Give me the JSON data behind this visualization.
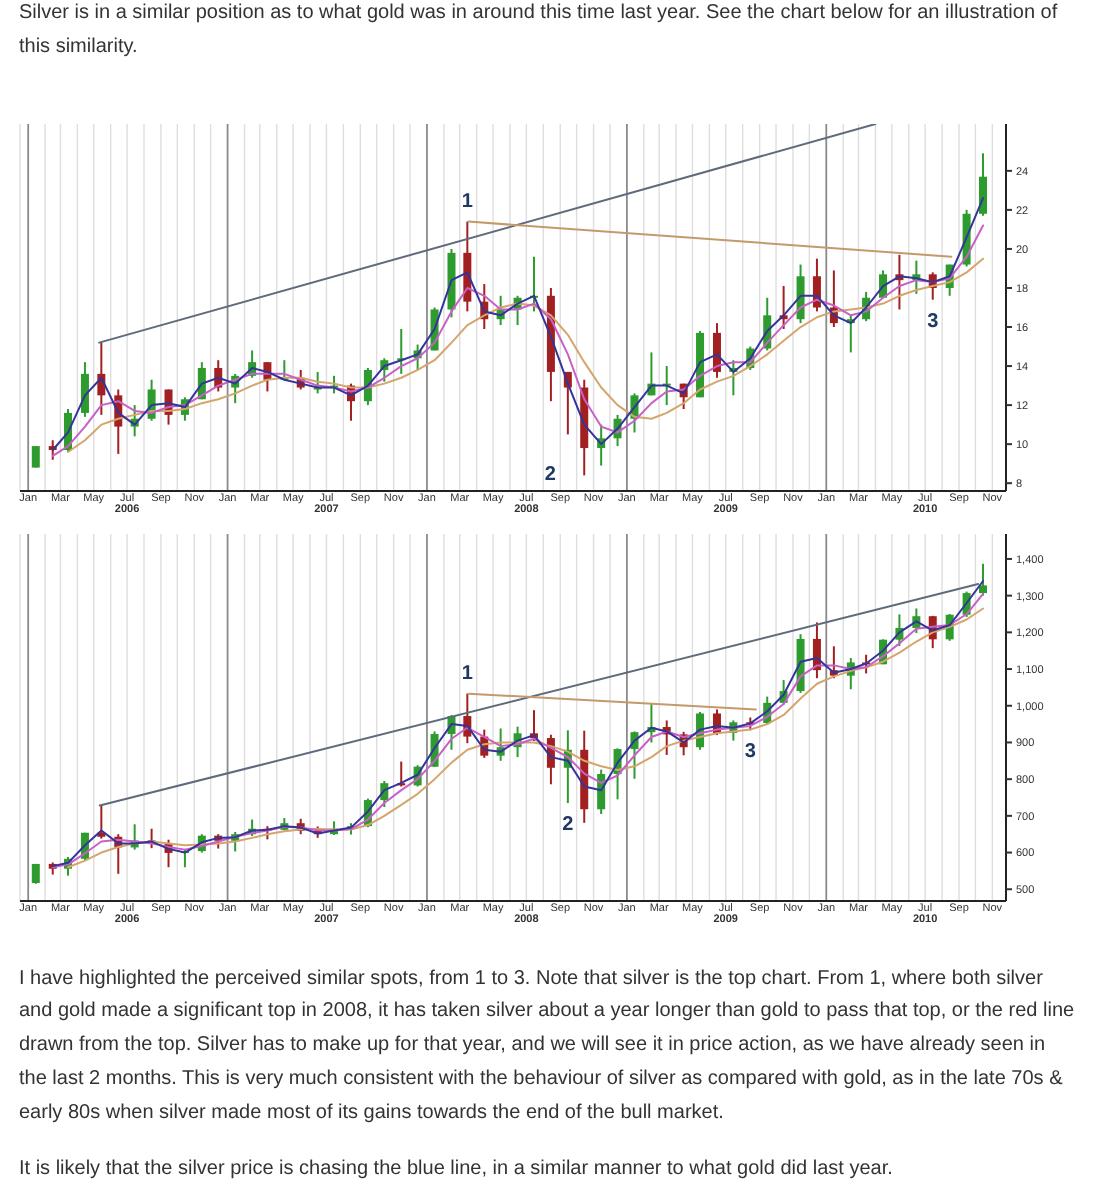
{
  "chart_data": [
    {
      "type": "candlestick",
      "title": "Silver is in a similar position as to what gold was in around this time last year. See the chart below for an illustration of this similarity.",
      "x": [
        "2006-01-15",
        "2006-02-15",
        "2006-03-15",
        "2006-04-15",
        "2006-05-15",
        "2006-06-15",
        "2006-07-15",
        "2006-08-15",
        "2006-09-15",
        "2006-10-15",
        "2006-11-15",
        "2006-12-15",
        "2007-01-15",
        "2007-02-15",
        "2007-03-15",
        "2007-04-15",
        "2007-05-15",
        "2007-06-15",
        "2007-07-15",
        "2007-08-15",
        "2007-09-15",
        "2007-10-15",
        "2007-11-15",
        "2007-12-15",
        "2008-01-15",
        "2008-02-15",
        "2008-03-15",
        "2008-04-15",
        "2008-05-15",
        "2008-06-15",
        "2008-07-15",
        "2008-08-15",
        "2008-09-15",
        "2008-10-15",
        "2008-11-15",
        "2008-12-15",
        "2009-01-15",
        "2009-02-15",
        "2009-03-15",
        "2009-04-15",
        "2009-05-15",
        "2009-06-15",
        "2009-07-15",
        "2009-08-15",
        "2009-09-15",
        "2009-10-15",
        "2009-11-15",
        "2009-12-15",
        "2010-01-15",
        "2010-02-15",
        "2010-03-15",
        "2010-04-15",
        "2010-05-15",
        "2010-06-15",
        "2010-07-15",
        "2010-08-15",
        "2010-09-15",
        "2010-10-15"
      ],
      "ohlc": [
        [
          8.8,
          9.9,
          8.8,
          9.9
        ],
        [
          9.9,
          10.2,
          9.2,
          9.7
        ],
        [
          9.7,
          11.8,
          9.6,
          11.6
        ],
        [
          11.6,
          14.2,
          11.4,
          13.6
        ],
        [
          13.6,
          15.2,
          11.5,
          12.5
        ],
        [
          12.5,
          12.8,
          9.5,
          10.9
        ],
        [
          10.9,
          12.0,
          10.4,
          11.3
        ],
        [
          11.3,
          13.3,
          11.2,
          12.8
        ],
        [
          12.8,
          12.8,
          11.0,
          11.5
        ],
        [
          11.5,
          12.4,
          11.2,
          12.3
        ],
        [
          12.3,
          14.2,
          12.3,
          13.9
        ],
        [
          13.9,
          14.3,
          12.7,
          12.9
        ],
        [
          12.9,
          13.6,
          12.1,
          13.5
        ],
        [
          13.5,
          14.8,
          13.4,
          14.2
        ],
        [
          14.2,
          14.2,
          12.7,
          13.3
        ],
        [
          13.3,
          14.3,
          13.3,
          13.4
        ],
        [
          13.4,
          13.8,
          12.8,
          12.9
        ],
        [
          12.9,
          13.7,
          12.6,
          12.9
        ],
        [
          12.9,
          13.5,
          12.6,
          13.0
        ],
        [
          13.0,
          13.1,
          11.2,
          12.2
        ],
        [
          12.2,
          13.9,
          12.0,
          13.8
        ],
        [
          13.8,
          14.4,
          13.2,
          14.3
        ],
        [
          14.3,
          15.9,
          13.6,
          14.4
        ],
        [
          14.4,
          15.1,
          13.8,
          14.8
        ],
        [
          14.8,
          17.0,
          14.8,
          16.9
        ],
        [
          16.9,
          20.0,
          16.5,
          19.8
        ],
        [
          19.8,
          21.4,
          16.8,
          17.3
        ],
        [
          17.3,
          18.2,
          15.9,
          16.4
        ],
        [
          16.4,
          17.6,
          16.1,
          16.9
        ],
        [
          16.9,
          17.6,
          16.1,
          17.5
        ],
        [
          17.5,
          19.6,
          16.8,
          17.6
        ],
        [
          17.6,
          18.0,
          12.2,
          13.7
        ],
        [
          13.7,
          13.7,
          10.5,
          12.9
        ],
        [
          12.9,
          13.3,
          8.4,
          9.8
        ],
        [
          9.8,
          11.0,
          8.9,
          10.3
        ],
        [
          10.3,
          11.5,
          9.9,
          11.3
        ],
        [
          11.3,
          12.6,
          10.6,
          12.5
        ],
        [
          12.5,
          14.7,
          12.5,
          13.1
        ],
        [
          13.1,
          14.0,
          12.0,
          13.1
        ],
        [
          13.1,
          13.1,
          11.8,
          12.4
        ],
        [
          12.4,
          15.8,
          12.4,
          15.7
        ],
        [
          15.7,
          16.2,
          13.4,
          13.7
        ],
        [
          13.7,
          14.3,
          12.5,
          13.9
        ],
        [
          13.9,
          15.0,
          13.8,
          14.9
        ],
        [
          14.9,
          17.5,
          14.8,
          16.6
        ],
        [
          16.6,
          18.1,
          15.9,
          16.4
        ],
        [
          16.4,
          19.2,
          16.2,
          18.6
        ],
        [
          18.6,
          19.5,
          16.8,
          17.0
        ],
        [
          17.0,
          18.9,
          16.0,
          16.2
        ],
        [
          16.2,
          16.6,
          14.7,
          16.4
        ],
        [
          16.4,
          17.8,
          16.3,
          17.5
        ],
        [
          17.5,
          18.9,
          17.5,
          18.7
        ],
        [
          18.7,
          19.7,
          16.9,
          18.4
        ],
        [
          18.4,
          19.4,
          17.7,
          18.7
        ],
        [
          18.7,
          18.8,
          17.4,
          18.0
        ],
        [
          18.0,
          19.2,
          17.6,
          19.2
        ],
        [
          19.2,
          22.0,
          19.1,
          21.8
        ],
        [
          21.8,
          24.9,
          21.7,
          23.7
        ]
      ],
      "colors": [
        "#2e9b2e",
        "#a32020",
        "#2e9b2e",
        "#2e9b2e",
        "#a32020",
        "#a32020",
        "#2e9b2e",
        "#2e9b2e",
        "#a32020",
        "#2e9b2e",
        "#2e9b2e",
        "#a32020",
        "#2e9b2e",
        "#2e9b2e",
        "#a32020",
        "#2e9b2e",
        "#a32020",
        "#2e9b2e",
        "#2e9b2e",
        "#a32020",
        "#2e9b2e",
        "#2e9b2e",
        "#2e9b2e",
        "#2e9b2e",
        "#2e9b2e",
        "#2e9b2e",
        "#a32020",
        "#a32020",
        "#2e9b2e",
        "#2e9b2e",
        "#2e9b2e",
        "#a32020",
        "#a32020",
        "#a32020",
        "#2e9b2e",
        "#2e9b2e",
        "#2e9b2e",
        "#2e9b2e",
        "#2e9b2e",
        "#a32020",
        "#2e9b2e",
        "#a32020",
        "#2e9b2e",
        "#2e9b2e",
        "#2e9b2e",
        "#a32020",
        "#2e9b2e",
        "#a32020",
        "#a32020",
        "#2e9b2e",
        "#2e9b2e",
        "#2e9b2e",
        "#a32020",
        "#2e9b2e",
        "#a32020",
        "#2e9b2e",
        "#2e9b2e",
        "#2e9b2e"
      ],
      "series": [
        {
          "type": "line",
          "color": "#d4a56c",
          "values": [
            null,
            null,
            9.6,
            10.2,
            11.0,
            11.3,
            11.5,
            11.7,
            11.7,
            11.8,
            12.1,
            12.3,
            12.6,
            13.0,
            13.3,
            13.4,
            13.4,
            13.2,
            13.1,
            12.9,
            12.9,
            13.1,
            13.4,
            13.8,
            14.3,
            15.2,
            16.1,
            16.6,
            17.0,
            17.2,
            17.1,
            16.6,
            15.6,
            14.2,
            12.9,
            12.0,
            11.4,
            11.3,
            11.6,
            12.1,
            12.8,
            13.2,
            13.5,
            14.0,
            14.6,
            15.3,
            16.0,
            16.5,
            16.8,
            16.9,
            17.0,
            17.2,
            17.6,
            17.9,
            18.1,
            18.3,
            18.8,
            19.5
          ]
        },
        {
          "type": "line",
          "color": "#c860c8",
          "values": [
            null,
            9.4,
            9.9,
            10.9,
            12.0,
            12.2,
            11.7,
            11.6,
            11.9,
            12.0,
            12.5,
            13.0,
            13.3,
            13.6,
            13.6,
            13.6,
            13.3,
            13.0,
            12.9,
            12.7,
            12.9,
            13.4,
            14.0,
            14.4,
            15.2,
            16.8,
            18.0,
            17.6,
            16.9,
            16.9,
            17.2,
            16.4,
            14.6,
            12.3,
            10.9,
            10.6,
            11.2,
            12.1,
            12.7,
            12.8,
            13.5,
            14.0,
            14.2,
            14.2,
            15.2,
            16.1,
            17.0,
            17.4,
            17.1,
            16.6,
            16.8,
            17.5,
            18.1,
            18.4,
            18.3,
            18.5,
            19.6,
            21.2
          ]
        },
        {
          "type": "line",
          "color": "#34349a",
          "values": [
            null,
            9.7,
            10.6,
            12.5,
            13.4,
            11.6,
            11.0,
            12.0,
            12.1,
            11.9,
            13.1,
            13.4,
            13.1,
            13.9,
            13.7,
            13.3,
            13.1,
            12.9,
            12.9,
            12.5,
            13.0,
            14.0,
            14.3,
            14.6,
            15.9,
            18.4,
            18.8,
            16.8,
            16.6,
            17.2,
            17.6,
            15.5,
            13.1,
            11.0,
            10.0,
            10.8,
            11.9,
            13.0,
            13.0,
            12.6,
            14.2,
            14.6,
            13.7,
            14.4,
            15.8,
            16.6,
            17.6,
            17.6,
            16.6,
            16.2,
            17.0,
            18.1,
            18.6,
            18.5,
            18.3,
            18.6,
            20.6,
            22.6
          ]
        },
        {
          "type": "line",
          "color": "#5f6b7c",
          "x": [
            "2006-05-11",
            "2010-04-01"
          ],
          "values": [
            15.2,
            26.4
          ]
        },
        {
          "type": "line",
          "color": "#c39a6a",
          "x": [
            "2008-03-17",
            "2010-08-18"
          ],
          "values": [
            21.4,
            19.6
          ]
        }
      ],
      "xlim": [
        "2005-12-17",
        "2010-11-26"
      ],
      "xticks": [
        {
          "value": "2006-01",
          "label": "Jan"
        },
        {
          "value": "2006-02",
          "label": null
        },
        {
          "value": "2006-03",
          "label": "Mar"
        },
        {
          "value": "2006-04",
          "label": null
        },
        {
          "value": "2006-05",
          "label": "May"
        },
        {
          "value": "2006-06",
          "label": null
        },
        {
          "value": "2006-07",
          "label": "Jul"
        },
        {
          "value": "2006-08",
          "label": null
        },
        {
          "value": "2006-09",
          "label": "Sep"
        },
        {
          "value": "2006-10",
          "label": null
        },
        {
          "value": "2006-11",
          "label": "Nov"
        },
        {
          "value": "2006-12",
          "label": null
        },
        {
          "value": "2007-01",
          "label": "Jan"
        },
        {
          "value": "2007-02",
          "label": null
        },
        {
          "value": "2007-03",
          "label": "Mar"
        },
        {
          "value": "2007-04",
          "label": null
        },
        {
          "value": "2007-05",
          "label": "May"
        },
        {
          "value": "2007-06",
          "label": null
        },
        {
          "value": "2007-07",
          "label": "Jul"
        },
        {
          "value": "2007-08",
          "label": null
        },
        {
          "value": "2007-09",
          "label": "Sep"
        },
        {
          "value": "2007-10",
          "label": null
        },
        {
          "value": "2007-11",
          "label": "Nov"
        },
        {
          "value": "2007-12",
          "label": null
        },
        {
          "value": "2008-01",
          "label": "Jan"
        },
        {
          "value": "2008-02",
          "label": null
        },
        {
          "value": "2008-03",
          "label": "Mar"
        },
        {
          "value": "2008-04",
          "label": null
        },
        {
          "value": "2008-05",
          "label": "May"
        },
        {
          "value": "2008-06",
          "label": null
        },
        {
          "value": "2008-07",
          "label": "Jul"
        },
        {
          "value": "2008-08",
          "label": null
        },
        {
          "value": "2008-09",
          "label": "Sep"
        },
        {
          "value": "2008-10",
          "label": null
        },
        {
          "value": "2008-11",
          "label": "Nov"
        },
        {
          "value": "2008-12",
          "label": null
        },
        {
          "value": "2009-01",
          "label": "Jan"
        },
        {
          "value": "2009-02",
          "label": null
        },
        {
          "value": "2009-03",
          "label": "Mar"
        },
        {
          "value": "2009-04",
          "label": null
        },
        {
          "value": "2009-05",
          "label": "May"
        },
        {
          "value": "2009-06",
          "label": null
        },
        {
          "value": "2009-07",
          "label": "Jul"
        },
        {
          "value": "2009-08",
          "label": null
        },
        {
          "value": "2009-09",
          "label": "Sep"
        },
        {
          "value": "2009-10",
          "label": null
        },
        {
          "value": "2009-11",
          "label": "Nov"
        },
        {
          "value": "2009-12",
          "label": null
        },
        {
          "value": "2010-01",
          "label": "Jan"
        },
        {
          "value": "2010-02",
          "label": null
        },
        {
          "value": "2010-03",
          "label": "Mar"
        },
        {
          "value": "2010-04",
          "label": null
        },
        {
          "value": "2010-05",
          "label": "May"
        },
        {
          "value": "2010-06",
          "label": null
        },
        {
          "value": "2010-07",
          "label": "Jul"
        },
        {
          "value": "2010-08",
          "label": null
        },
        {
          "value": "2010-09",
          "label": "Sep"
        },
        {
          "value": "2010-10",
          "label": null
        },
        {
          "value": "2010-11",
          "label": "Nov"
        }
      ],
      "x2lim": [
        "2005-12-17",
        "2010-11-26"
      ],
      "x2ticks": [
        {
          "value": "2006-07-01",
          "label": "2006"
        },
        {
          "value": "2007-07-01",
          "label": "2007"
        },
        {
          "value": "2008-07-01",
          "label": "2008"
        },
        {
          "value": "2009-07-01",
          "label": "2009"
        },
        {
          "value": "2010-07-01",
          "label": "2010"
        }
      ],
      "ylim": [
        7.6,
        26.4
      ],
      "yticks": [
        8,
        10,
        12,
        14,
        16,
        18,
        20,
        22,
        24
      ],
      "grid": "x",
      "annotations": [
        {
          "text": "1",
          "x": "2008-03-15",
          "y": 21.4
        },
        {
          "text": "2",
          "x": "2008-10-15",
          "y": 8.4
        },
        {
          "text": "3",
          "x": "2010-07-15",
          "y": 17.4
        }
      ]
    },
    {
      "type": "candlestick",
      "x": [
        "2006-01-15",
        "2006-02-15",
        "2006-03-15",
        "2006-04-15",
        "2006-05-15",
        "2006-06-15",
        "2006-07-15",
        "2006-08-15",
        "2006-09-15",
        "2006-10-15",
        "2006-11-15",
        "2006-12-15",
        "2007-01-15",
        "2007-02-15",
        "2007-03-15",
        "2007-04-15",
        "2007-05-15",
        "2007-06-15",
        "2007-07-15",
        "2007-08-15",
        "2007-09-15",
        "2007-10-15",
        "2007-11-15",
        "2007-12-15",
        "2008-01-15",
        "2008-02-15",
        "2008-03-15",
        "2008-04-15",
        "2008-05-15",
        "2008-06-15",
        "2008-07-15",
        "2008-08-15",
        "2008-09-15",
        "2008-10-15",
        "2008-11-15",
        "2008-12-15",
        "2009-01-15",
        "2009-02-15",
        "2009-03-15",
        "2009-04-15",
        "2009-05-15",
        "2009-06-15",
        "2009-07-15",
        "2009-08-15",
        "2009-09-15",
        "2009-10-15",
        "2009-11-15",
        "2009-12-15",
        "2010-01-15",
        "2010-02-15",
        "2010-03-15",
        "2010-04-15",
        "2010-05-15",
        "2010-06-15",
        "2010-07-15",
        "2010-08-15",
        "2010-09-15",
        "2010-10-15"
      ],
      "ohlc": [
        [
          517,
          569,
          515,
          569
        ],
        [
          569,
          573,
          540,
          556
        ],
        [
          556,
          588,
          537,
          583
        ],
        [
          583,
          654,
          580,
          654
        ],
        [
          654,
          730,
          638,
          643
        ],
        [
          643,
          650,
          542,
          614
        ],
        [
          614,
          677,
          608,
          633
        ],
        [
          633,
          665,
          612,
          624
        ],
        [
          624,
          635,
          560,
          599
        ],
        [
          599,
          610,
          560,
          604
        ],
        [
          604,
          650,
          600,
          646
        ],
        [
          646,
          650,
          611,
          632
        ],
        [
          632,
          656,
          603,
          650
        ],
        [
          650,
          690,
          645,
          665
        ],
        [
          665,
          672,
          636,
          662
        ],
        [
          662,
          694,
          660,
          680
        ],
        [
          680,
          692,
          650,
          659
        ],
        [
          659,
          671,
          640,
          650
        ],
        [
          650,
          685,
          648,
          665
        ],
        [
          665,
          680,
          649,
          672
        ],
        [
          672,
          747,
          669,
          743
        ],
        [
          743,
          795,
          724,
          789
        ],
        [
          789,
          848,
          780,
          783
        ],
        [
          783,
          838,
          780,
          834
        ],
        [
          834,
          930,
          833,
          923
        ],
        [
          923,
          975,
          880,
          972
        ],
        [
          972,
          1033,
          898,
          916
        ],
        [
          916,
          935,
          858,
          864
        ],
        [
          864,
          938,
          850,
          887
        ],
        [
          887,
          943,
          860,
          925
        ],
        [
          925,
          988,
          904,
          912
        ],
        [
          912,
          921,
          786,
          831
        ],
        [
          831,
          933,
          735,
          880
        ],
        [
          880,
          932,
          681,
          718
        ],
        [
          718,
          826,
          705,
          814
        ],
        [
          814,
          884,
          745,
          882
        ],
        [
          882,
          930,
          801,
          928
        ],
        [
          928,
          1007,
          900,
          942
        ],
        [
          942,
          960,
          866,
          922
        ],
        [
          922,
          929,
          865,
          887
        ],
        [
          887,
          983,
          880,
          979
        ],
        [
          979,
          990,
          920,
          926
        ],
        [
          926,
          960,
          905,
          955
        ],
        [
          955,
          968,
          933,
          953
        ],
        [
          953,
          1025,
          948,
          1008
        ],
        [
          1008,
          1070,
          1003,
          1040
        ],
        [
          1040,
          1195,
          1035,
          1182
        ],
        [
          1182,
          1227,
          1075,
          1097
        ],
        [
          1097,
          1162,
          1075,
          1082
        ],
        [
          1082,
          1130,
          1045,
          1118
        ],
        [
          1118,
          1139,
          1088,
          1113
        ],
        [
          1113,
          1181,
          1113,
          1180
        ],
        [
          1180,
          1249,
          1163,
          1212
        ],
        [
          1212,
          1265,
          1198,
          1244
        ],
        [
          1244,
          1245,
          1157,
          1181
        ],
        [
          1181,
          1250,
          1177,
          1248
        ],
        [
          1248,
          1311,
          1242,
          1307
        ],
        [
          1307,
          1387,
          1300,
          1328
        ]
      ],
      "colors": [
        "#2e9b2e",
        "#a32020",
        "#2e9b2e",
        "#2e9b2e",
        "#a32020",
        "#a32020",
        "#2e9b2e",
        "#a32020",
        "#a32020",
        "#2e9b2e",
        "#2e9b2e",
        "#a32020",
        "#2e9b2e",
        "#2e9b2e",
        "#a32020",
        "#2e9b2e",
        "#a32020",
        "#a32020",
        "#2e9b2e",
        "#2e9b2e",
        "#2e9b2e",
        "#2e9b2e",
        "#a32020",
        "#2e9b2e",
        "#2e9b2e",
        "#2e9b2e",
        "#a32020",
        "#a32020",
        "#2e9b2e",
        "#2e9b2e",
        "#a32020",
        "#a32020",
        "#2e9b2e",
        "#a32020",
        "#2e9b2e",
        "#2e9b2e",
        "#2e9b2e",
        "#2e9b2e",
        "#a32020",
        "#a32020",
        "#2e9b2e",
        "#a32020",
        "#2e9b2e",
        "#a32020",
        "#2e9b2e",
        "#2e9b2e",
        "#2e9b2e",
        "#a32020",
        "#a32020",
        "#2e9b2e",
        "#a32020",
        "#2e9b2e",
        "#2e9b2e",
        "#2e9b2e",
        "#a32020",
        "#2e9b2e",
        "#2e9b2e",
        "#2e9b2e"
      ],
      "series": [
        {
          "type": "line",
          "color": "#d4a56c",
          "values": [
            null,
            null,
            560,
            578,
            600,
            615,
            625,
            630,
            625,
            620,
            622,
            625,
            630,
            640,
            650,
            658,
            663,
            664,
            663,
            663,
            675,
            700,
            730,
            760,
            800,
            845,
            880,
            895,
            900,
            900,
            900,
            890,
            875,
            850,
            835,
            825,
            835,
            860,
            890,
            905,
            915,
            925,
            930,
            935,
            950,
            975,
            1020,
            1060,
            1080,
            1095,
            1105,
            1120,
            1145,
            1175,
            1200,
            1215,
            1235,
            1265
          ]
        },
        {
          "type": "line",
          "color": "#c860c8",
          "values": [
            null,
            560,
            568,
            598,
            630,
            635,
            630,
            625,
            615,
            608,
            618,
            630,
            643,
            653,
            660,
            670,
            668,
            661,
            660,
            664,
            690,
            735,
            770,
            800,
            850,
            910,
            940,
            915,
            890,
            895,
            910,
            885,
            860,
            815,
            790,
            810,
            865,
            915,
            930,
            915,
            925,
            935,
            940,
            945,
            970,
            1005,
            1080,
            1110,
            1110,
            1100,
            1105,
            1135,
            1170,
            1210,
            1215,
            1220,
            1250,
            1305
          ]
        },
        {
          "type": "line",
          "color": "#34349a",
          "values": [
            null,
            563,
            572,
            620,
            660,
            625,
            625,
            630,
            610,
            600,
            628,
            640,
            642,
            660,
            662,
            672,
            668,
            652,
            660,
            668,
            712,
            770,
            790,
            812,
            885,
            950,
            945,
            880,
            875,
            905,
            920,
            860,
            850,
            780,
            770,
            845,
            905,
            940,
            930,
            900,
            935,
            945,
            940,
            952,
            985,
            1030,
            1120,
            1130,
            1090,
            1100,
            1115,
            1150,
            1200,
            1230,
            1205,
            1220,
            1280,
            1340
          ]
        },
        {
          "type": "line",
          "color": "#5f6b7c",
          "x": [
            "2006-05-12",
            "2010-10-06"
          ],
          "values": [
            728,
            1332
          ]
        },
        {
          "type": "line",
          "color": "#c39a6a",
          "x": [
            "2008-03-17",
            "2009-08-25"
          ],
          "values": [
            1033,
            990
          ]
        }
      ],
      "xlim": [
        "2005-12-17",
        "2010-11-26"
      ],
      "xticks": [
        {
          "value": "2006-01",
          "label": "Jan"
        },
        {
          "value": "2006-02",
          "label": null
        },
        {
          "value": "2006-03",
          "label": "Mar"
        },
        {
          "value": "2006-04",
          "label": null
        },
        {
          "value": "2006-05",
          "label": "May"
        },
        {
          "value": "2006-06",
          "label": null
        },
        {
          "value": "2006-07",
          "label": "Jul"
        },
        {
          "value": "2006-08",
          "label": null
        },
        {
          "value": "2006-09",
          "label": "Sep"
        },
        {
          "value": "2006-10",
          "label": null
        },
        {
          "value": "2006-11",
          "label": "Nov"
        },
        {
          "value": "2006-12",
          "label": null
        },
        {
          "value": "2007-01",
          "label": "Jan"
        },
        {
          "value": "2007-02",
          "label": null
        },
        {
          "value": "2007-03",
          "label": "Mar"
        },
        {
          "value": "2007-04",
          "label": null
        },
        {
          "value": "2007-05",
          "label": "May"
        },
        {
          "value": "2007-06",
          "label": null
        },
        {
          "value": "2007-07",
          "label": "Jul"
        },
        {
          "value": "2007-08",
          "label": null
        },
        {
          "value": "2007-09",
          "label": "Sep"
        },
        {
          "value": "2007-10",
          "label": null
        },
        {
          "value": "2007-11",
          "label": "Nov"
        },
        {
          "value": "2007-12",
          "label": null
        },
        {
          "value": "2008-01",
          "label": "Jan"
        },
        {
          "value": "2008-02",
          "label": null
        },
        {
          "value": "2008-03",
          "label": "Mar"
        },
        {
          "value": "2008-04",
          "label": null
        },
        {
          "value": "2008-05",
          "label": "May"
        },
        {
          "value": "2008-06",
          "label": null
        },
        {
          "value": "2008-07",
          "label": "Jul"
        },
        {
          "value": "2008-08",
          "label": null
        },
        {
          "value": "2008-09",
          "label": "Sep"
        },
        {
          "value": "2008-10",
          "label": null
        },
        {
          "value": "2008-11",
          "label": "Nov"
        },
        {
          "value": "2008-12",
          "label": null
        },
        {
          "value": "2009-01",
          "label": "Jan"
        },
        {
          "value": "2009-02",
          "label": null
        },
        {
          "value": "2009-03",
          "label": "Mar"
        },
        {
          "value": "2009-04",
          "label": null
        },
        {
          "value": "2009-05",
          "label": "May"
        },
        {
          "value": "2009-06",
          "label": null
        },
        {
          "value": "2009-07",
          "label": "Jul"
        },
        {
          "value": "2009-08",
          "label": null
        },
        {
          "value": "2009-09",
          "label": "Sep"
        },
        {
          "value": "2009-10",
          "label": null
        },
        {
          "value": "2009-11",
          "label": "Nov"
        },
        {
          "value": "2009-12",
          "label": null
        },
        {
          "value": "2010-01",
          "label": "Jan"
        },
        {
          "value": "2010-02",
          "label": null
        },
        {
          "value": "2010-03",
          "label": "Mar"
        },
        {
          "value": "2010-04",
          "label": null
        },
        {
          "value": "2010-05",
          "label": "May"
        },
        {
          "value": "2010-06",
          "label": null
        },
        {
          "value": "2010-07",
          "label": "Jul"
        },
        {
          "value": "2010-08",
          "label": null
        },
        {
          "value": "2010-09",
          "label": "Sep"
        },
        {
          "value": "2010-10",
          "label": null
        },
        {
          "value": "2010-11",
          "label": "Nov"
        }
      ],
      "x2lim": [
        "2005-12-17",
        "2010-11-26"
      ],
      "x2ticks": [
        {
          "value": "2006-07-01",
          "label": "2006"
        },
        {
          "value": "2007-07-01",
          "label": "2007"
        },
        {
          "value": "2008-07-01",
          "label": "2008"
        },
        {
          "value": "2009-07-01",
          "label": "2009"
        },
        {
          "value": "2010-07-01",
          "label": "2010"
        }
      ],
      "ylim": [
        468,
        1468
      ],
      "yticks": [
        500,
        600,
        700,
        800,
        900,
        {
          "value": 1000,
          "label": "1,000"
        },
        {
          "value": 1100,
          "label": "1,100"
        },
        {
          "value": 1200,
          "label": "1,200"
        },
        {
          "value": 1300,
          "label": "1,300"
        },
        {
          "value": 1400,
          "label": "1,400"
        }
      ],
      "grid": "x",
      "annotations": [
        {
          "text": "1",
          "x": "2008-03-15",
          "y": 1033
        },
        {
          "text": "2",
          "x": "2008-09-15",
          "y": 735
        },
        {
          "text": "3",
          "x": "2009-08-15",
          "y": 933
        },
        "I have highlighted the perceived similar spots, from 1 to 3. Note that silver is the top chart. From 1, where both silver and gold made a significant top in 2008, it has taken silver about a year longer than gold to pass that top, or the red line drawn from the top. Silver has to make up for that year, and we will see it in price action, as we have already seen in the last 2 months. This is very much consistent with the behaviour of silver as compared with gold, as in the late 70s & early 80s when silver made most of its gains towards the end of the bull market.",
        "It is likely that the silver price is chasing the blue line, in a similar manner to what gold did last year."
      ]
    }
  ]
}
